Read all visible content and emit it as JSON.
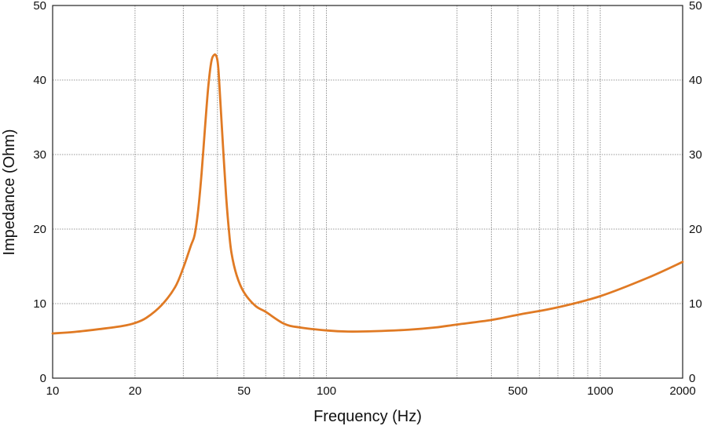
{
  "chart_data": {
    "type": "line",
    "xlabel": "Frequency (Hz)",
    "ylabel": "Impedance (Ohm)",
    "x_scale": "log",
    "xlim": [
      10,
      2000
    ],
    "ylim": [
      0,
      50
    ],
    "grid": true,
    "x_tick_labels": [
      "10",
      "20",
      "50",
      "100",
      "500",
      "1000",
      "2000"
    ],
    "x_tick_values": [
      10,
      20,
      50,
      100,
      500,
      1000,
      2000
    ],
    "x_gridlines": [
      10,
      20,
      30,
      40,
      50,
      60,
      70,
      80,
      90,
      100,
      300,
      400,
      500,
      600,
      700,
      800,
      900,
      1000,
      2000
    ],
    "y_tick_labels": [
      "0",
      "10",
      "20",
      "30",
      "40",
      "50"
    ],
    "y_tick_values": [
      0,
      10,
      20,
      30,
      40,
      50
    ],
    "line_color": "#e07a24",
    "series": [
      {
        "x": [
          10,
          12,
          15,
          18,
          20,
          22,
          25,
          28,
          30,
          32,
          33,
          34,
          35,
          36,
          37,
          38,
          39,
          39.8,
          40.3,
          41,
          42,
          43,
          44,
          45,
          47,
          50,
          55,
          60,
          70,
          80,
          100,
          120,
          150,
          200,
          250,
          300,
          400,
          500,
          700,
          1000,
          1500,
          2000
        ],
        "y": [
          6.0,
          6.2,
          6.6,
          7.0,
          7.4,
          8.1,
          9.8,
          12.2,
          14.8,
          17.8,
          19.2,
          22.5,
          27.5,
          33.5,
          39.0,
          42.5,
          43.4,
          43.0,
          41.5,
          37.0,
          30.5,
          24.5,
          20.0,
          16.8,
          13.8,
          11.5,
          9.7,
          8.9,
          7.3,
          6.8,
          6.4,
          6.25,
          6.3,
          6.5,
          6.8,
          7.2,
          7.8,
          8.5,
          9.5,
          11.0,
          13.5,
          15.6
        ]
      }
    ]
  }
}
